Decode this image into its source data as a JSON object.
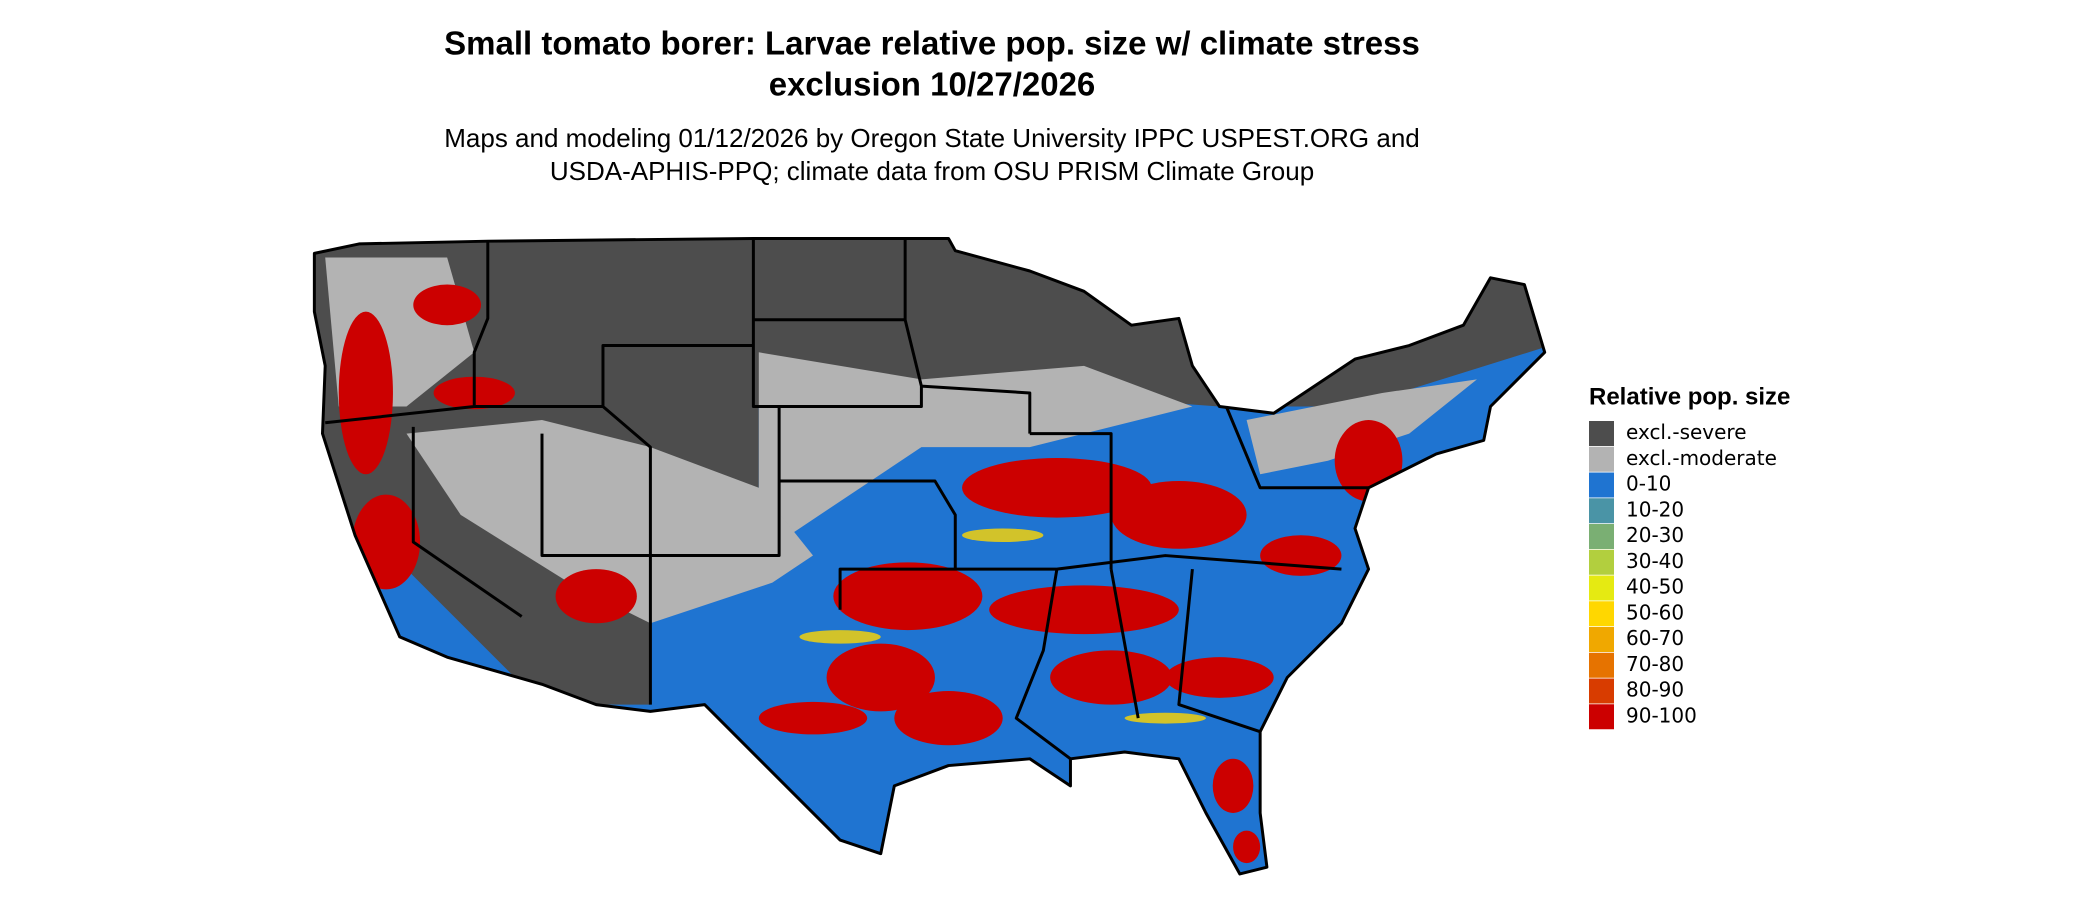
{
  "title": [
    "Small tomato borer: Larvae relative pop. size w/ climate stress",
    "exclusion 10/27/2026"
  ],
  "subtitle": [
    "Maps and modeling 01/12/2026 by Oregon State University IPPC USPEST.ORG and",
    "USDA-APHIS-PPQ; climate data from OSU PRISM Climate Group"
  ],
  "legend": {
    "title": "Relative pop. size",
    "items": [
      {
        "label": "excl.-severe",
        "color": "#4d4d4d"
      },
      {
        "label": "excl.-moderate",
        "color": "#b3b3b3"
      },
      {
        "label": "0-10",
        "color": "#1f74d1"
      },
      {
        "label": "10-20",
        "color": "#4a94a6"
      },
      {
        "label": "20-30",
        "color": "#7aaf73"
      },
      {
        "label": "30-40",
        "color": "#b2cf3e"
      },
      {
        "label": "40-50",
        "color": "#e5ea12"
      },
      {
        "label": "50-60",
        "color": "#ffd700"
      },
      {
        "label": "60-70",
        "color": "#f0a800"
      },
      {
        "label": "70-80",
        "color": "#e67300"
      },
      {
        "label": "80-90",
        "color": "#d83c00"
      },
      {
        "label": "90-100",
        "color": "#cc0000"
      }
    ]
  }
}
